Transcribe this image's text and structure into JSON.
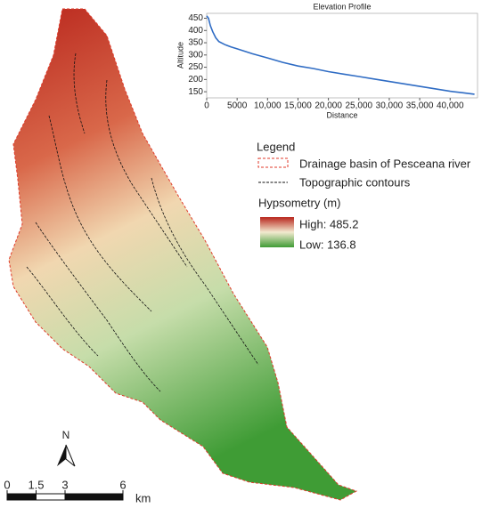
{
  "chart_data": {
    "type": "line",
    "title": "Elevation Profile",
    "x_label": "Distance",
    "y_label": "Altitude",
    "x": [
      0,
      300,
      600,
      1000,
      1500,
      2000,
      3000,
      4000,
      5000,
      7500,
      10000,
      12500,
      15000,
      17500,
      20000,
      22500,
      25000,
      27500,
      30000,
      32500,
      35000,
      37500,
      40000,
      42000,
      44000
    ],
    "values": [
      460,
      450,
      420,
      395,
      370,
      355,
      342,
      333,
      325,
      305,
      288,
      270,
      255,
      245,
      232,
      222,
      212,
      202,
      192,
      182,
      172,
      162,
      152,
      146,
      140
    ],
    "color": "#2f6cc4",
    "xlim": [
      0,
      44500
    ],
    "ylim": [
      125,
      470
    ],
    "xticks": [
      0,
      5000,
      {
        "value": 10000,
        "label": "10,000"
      },
      {
        "value": 15000,
        "label": "15,000"
      },
      {
        "value": 20000,
        "label": "20,000"
      },
      {
        "value": 25000,
        "label": "25,000"
      },
      {
        "value": 30000,
        "label": "30,000"
      },
      {
        "value": 35000,
        "label": "35,000"
      },
      {
        "value": 40000,
        "label": "40,000"
      }
    ],
    "yticks": [
      150,
      200,
      250,
      300,
      350,
      400,
      450
    ]
  },
  "legend": {
    "title": "Legend",
    "basin": "Drainage basin of Pesceana river",
    "contours": "Topographic contours",
    "hypsometry_title": "Hypsometry (m)",
    "high": "High: 485.2",
    "low": "Low: 136.8"
  },
  "north_arrow": "N",
  "scale_bar": {
    "ticks": [
      0,
      1.5,
      3,
      6
    ],
    "unit": "km"
  }
}
